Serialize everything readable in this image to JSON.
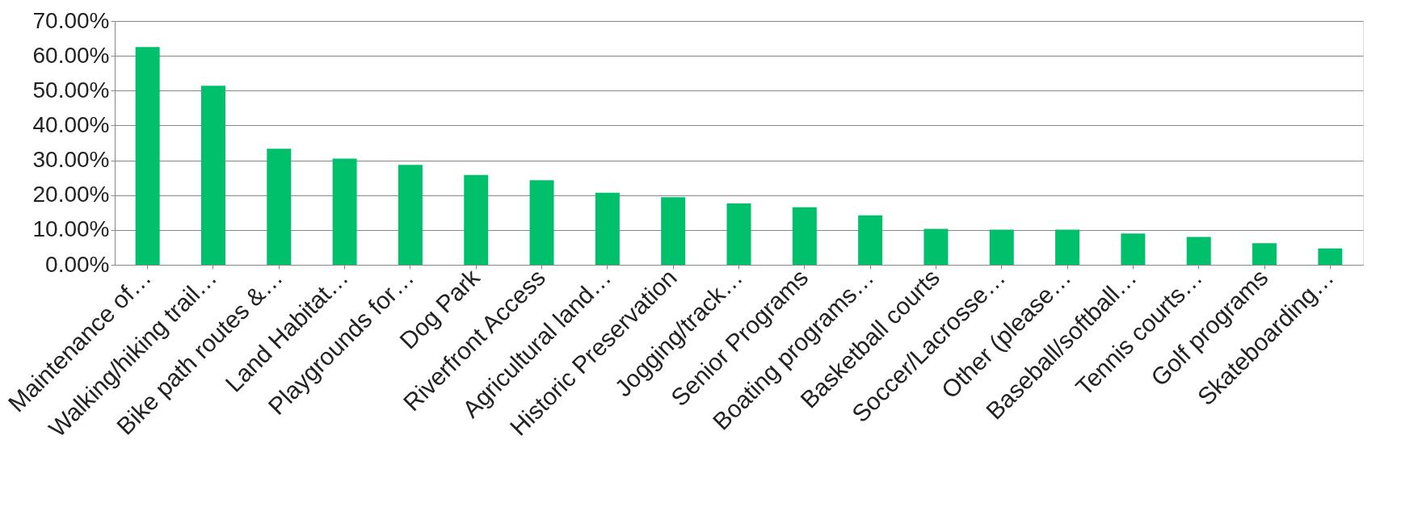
{
  "chart_data": {
    "type": "bar",
    "categories": [
      "Maintenance of…",
      "Walking/hiking trail…",
      "Bike path routes &…",
      "Land Habitat…",
      "Playgrounds for…",
      "Dog Park",
      "Riverfront Access",
      "Agricultural land…",
      "Historic Preservation",
      "Jogging/track…",
      "Senior Programs",
      "Boating programs…",
      "Basketball courts",
      "Soccer/Lacrosse…",
      "Other (please…",
      "Baseball/softball…",
      "Tennis courts…",
      "Golf programs",
      "Skateboarding…"
    ],
    "values": [
      62.5,
      51.4,
      33.3,
      30.5,
      28.7,
      25.8,
      24.3,
      20.7,
      19.4,
      17.6,
      16.5,
      14.2,
      10.3,
      10.1,
      10.1,
      9.0,
      8.0,
      6.2,
      4.7
    ],
    "color": "#00c06b",
    "ylim": [
      0,
      70
    ],
    "yticks": [
      {
        "value": 0,
        "label": "0.00%"
      },
      {
        "value": 10,
        "label": "10.00%"
      },
      {
        "value": 20,
        "label": "20.00%"
      },
      {
        "value": 30,
        "label": "30.00%"
      },
      {
        "value": 40,
        "label": "40.00%"
      },
      {
        "value": 50,
        "label": "50.00%"
      },
      {
        "value": 60,
        "label": "60.00%"
      },
      {
        "value": 70,
        "label": "70.00%"
      }
    ],
    "grid": "y"
  }
}
